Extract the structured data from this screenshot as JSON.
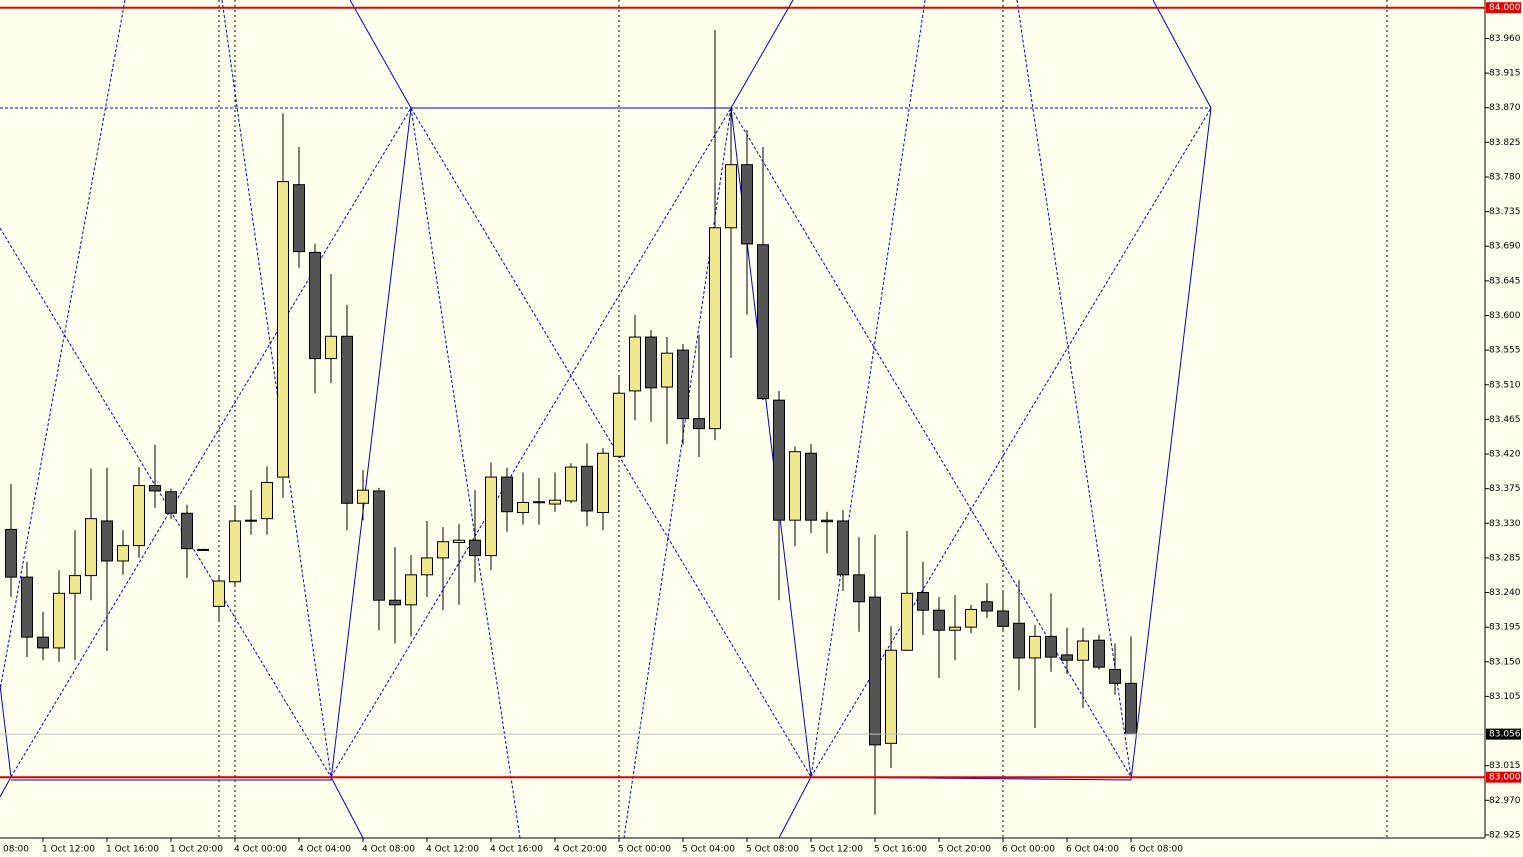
{
  "chart_data": {
    "type": "candlestick",
    "categories": [
      null,
      null,
      "1 Oct 12:00",
      null,
      null,
      null,
      "1 Oct 16:00",
      null,
      null,
      null,
      "1 Oct 20:00",
      null,
      null,
      null,
      "4 Oct 00:00",
      null,
      null,
      null,
      "4 Oct 04:00",
      null,
      null,
      null,
      "4 Oct 08:00",
      null,
      null,
      null,
      "4 Oct 12:00",
      null,
      null,
      null,
      "4 Oct 16:00",
      null,
      null,
      null,
      "4 Oct 20:00",
      null,
      null,
      null,
      "5 Oct 00:00",
      null,
      null,
      null,
      "5 Oct 04:00",
      null,
      null,
      null,
      "5 Oct 08:00",
      null,
      null,
      null,
      "5 Oct 12:00",
      null,
      null,
      null,
      "5 Oct 16:00",
      null,
      null,
      null,
      "5 Oct 20:00",
      null,
      null,
      null,
      "6 Oct 00:00",
      null,
      null,
      null,
      "6 Oct 04:00",
      null,
      null,
      null,
      "6 Oct 08:00"
    ],
    "x_edge_label": "08:00",
    "open": [
      83.322,
      83.26,
      83.182,
      83.168,
      83.239,
      83.262,
      83.333,
      83.281,
      83.301,
      83.379,
      83.371,
      83.343,
      83.296,
      83.222,
      83.254,
      83.334,
      83.336,
      83.39,
      83.77,
      83.682,
      83.544,
      83.573,
      83.356,
      83.372,
      83.23,
      83.224,
      83.263,
      83.285,
      83.305,
      83.308,
      83.288,
      83.39,
      83.344,
      83.357,
      83.355,
      83.359,
      83.404,
      83.344,
      83.417,
      83.502,
      83.572,
      83.507,
      83.555,
      83.466,
      83.453,
      83.714,
      83.796,
      83.692,
      83.49,
      83.334,
      83.421,
      83.334,
      83.333,
      83.263,
      83.234,
      83.044,
      83.165,
      83.24,
      83.217,
      83.191,
      83.195,
      83.228,
      83.216,
      83.2,
      83.155,
      83.183,
      83.159,
      83.152,
      83.178,
      83.14,
      83.122
    ],
    "high": [
      83.381,
      83.28,
      83.215,
      83.269,
      83.321,
      83.401,
      83.402,
      83.321,
      83.403,
      83.432,
      83.375,
      83.354,
      83.297,
      83.263,
      83.353,
      83.373,
      83.404,
      83.863,
      83.819,
      83.693,
      83.654,
      83.614,
      83.399,
      83.376,
      83.299,
      83.289,
      83.333,
      83.325,
      83.329,
      83.373,
      83.409,
      83.402,
      83.396,
      83.389,
      83.396,
      83.408,
      83.434,
      83.428,
      83.521,
      83.601,
      83.581,
      83.572,
      83.563,
      83.575,
      83.971,
      83.867,
      83.841,
      83.819,
      83.502,
      83.43,
      83.433,
      83.345,
      83.347,
      83.312,
      83.315,
      83.196,
      83.32,
      83.28,
      83.234,
      83.237,
      83.224,
      83.252,
      83.243,
      83.256,
      83.198,
      83.239,
      83.194,
      83.194,
      83.185,
      83.174,
      83.183
    ],
    "low": [
      83.234,
      83.156,
      83.152,
      83.15,
      83.152,
      83.23,
      83.164,
      83.263,
      83.285,
      83.35,
      83.336,
      83.259,
      83.294,
      83.204,
      83.249,
      83.315,
      83.315,
      83.363,
      83.662,
      83.499,
      83.512,
      83.321,
      83.334,
      83.191,
      83.174,
      83.183,
      83.234,
      83.217,
      83.224,
      83.253,
      83.269,
      83.319,
      83.328,
      83.328,
      83.345,
      83.356,
      83.326,
      83.321,
      83.415,
      83.464,
      83.462,
      83.433,
      83.432,
      83.416,
      83.438,
      83.545,
      83.601,
      83.49,
      83.23,
      83.3,
      83.317,
      83.291,
      83.242,
      83.189,
      82.951,
      83.012,
      83.164,
      83.185,
      83.129,
      83.152,
      83.187,
      83.207,
      83.191,
      83.113,
      83.064,
      83.137,
      83.134,
      83.09,
      83.14,
      83.107,
      83.056
    ],
    "close": [
      83.26,
      83.182,
      83.168,
      83.239,
      83.262,
      83.336,
      83.281,
      83.301,
      83.379,
      83.372,
      83.343,
      83.297,
      83.295,
      83.255,
      83.333,
      83.333,
      83.383,
      83.774,
      83.683,
      83.544,
      83.573,
      83.356,
      83.373,
      83.23,
      83.224,
      83.263,
      83.285,
      83.306,
      83.308,
      83.288,
      83.39,
      83.345,
      83.357,
      83.358,
      83.36,
      83.403,
      83.346,
      83.421,
      83.499,
      83.572,
      83.506,
      83.551,
      83.466,
      83.453,
      83.714,
      83.796,
      83.693,
      83.492,
      83.334,
      83.423,
      83.334,
      83.332,
      83.263,
      83.228,
      83.042,
      83.165,
      83.239,
      83.217,
      83.191,
      83.195,
      83.218,
      83.216,
      83.196,
      83.155,
      83.183,
      83.156,
      83.152,
      83.177,
      83.143,
      83.122,
      83.056
    ],
    "up_color": "#f0e68c",
    "down_color": "#555555",
    "ylim": [
      82.921,
      84.01
    ],
    "yticks": [
      {
        "value": 83.96,
        "label": "83.960"
      },
      {
        "value": 83.915,
        "label": "83.915"
      },
      {
        "value": 83.87,
        "label": "83.870"
      },
      {
        "value": 83.825,
        "label": "83.825"
      },
      {
        "value": 83.78,
        "label": "83.780"
      },
      {
        "value": 83.735,
        "label": "83.735"
      },
      {
        "value": 83.69,
        "label": "83.690"
      },
      {
        "value": 83.645,
        "label": "83.645"
      },
      {
        "value": 83.6,
        "label": "83.600"
      },
      {
        "value": 83.555,
        "label": "83.555"
      },
      {
        "value": 83.51,
        "label": "83.510"
      },
      {
        "value": 83.465,
        "label": "83.465"
      },
      {
        "value": 83.42,
        "label": "83.420"
      },
      {
        "value": 83.375,
        "label": "83.375"
      },
      {
        "value": 83.33,
        "label": "83.330"
      },
      {
        "value": 83.285,
        "label": "83.285"
      },
      {
        "value": 83.24,
        "label": "83.240"
      },
      {
        "value": 83.195,
        "label": "83.195"
      },
      {
        "value": 83.15,
        "label": "83.150"
      },
      {
        "value": 83.105,
        "label": "83.105"
      },
      {
        "value": 83.015,
        "label": "83.015"
      },
      {
        "value": 82.97,
        "label": "82.970"
      },
      {
        "value": 82.925,
        "label": "82.925"
      }
    ],
    "levels": [
      {
        "value": 84,
        "label": "84.000",
        "color": "#e00000"
      },
      {
        "value": 83,
        "label": "83.000",
        "color": "#e00000"
      }
    ],
    "last_price": {
      "value": 83.056,
      "label": "83.056"
    }
  }
}
